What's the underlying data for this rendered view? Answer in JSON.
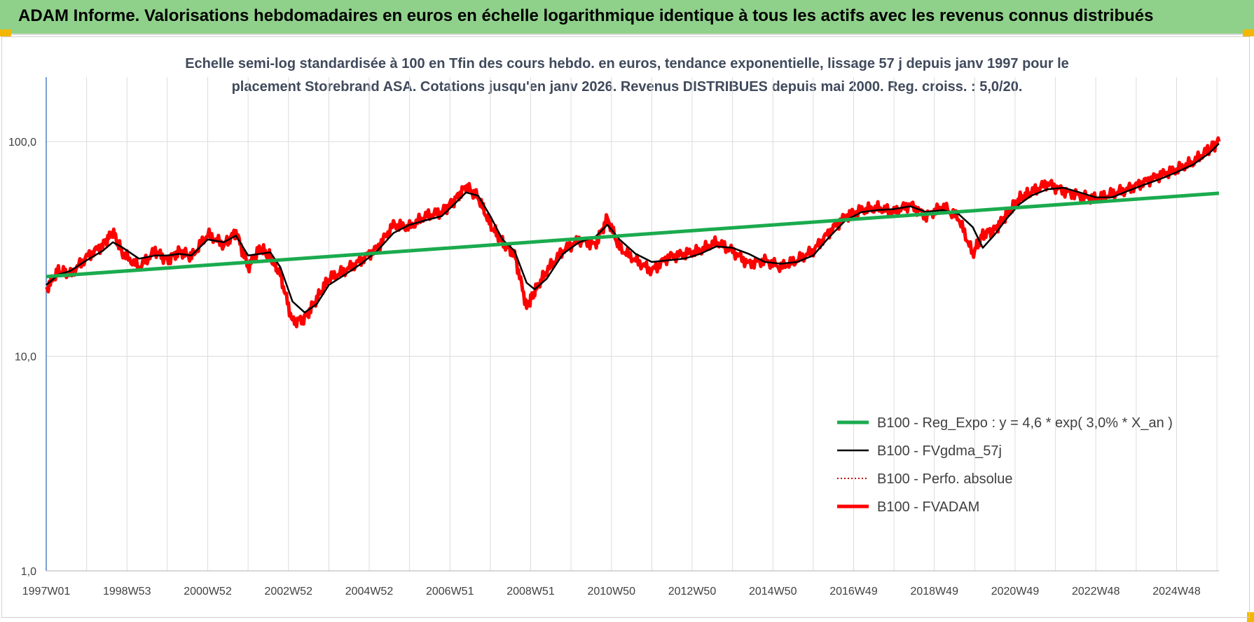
{
  "banner": {
    "title": "ADAM Informe. Valorisations hebdomadaires en euros en échelle logarithmique identique à tous les actifs avec les revenus connus distribués"
  },
  "colors": {
    "banner_bg": "#8fd18a",
    "reg_expo": "#1aab4e",
    "fvgdma": "#000000",
    "perfo": "#c00000",
    "fvadam": "#ff0000",
    "grid": "#dcdcdc",
    "axis": "#4f81bd"
  },
  "chart_data": {
    "type": "line",
    "title_lines": [
      "Echelle semi-log standardisée à 100 en Tfin des cours hebdo. en euros, tendance exponentielle, lissage 57 j depuis janv 1997 pour le",
      "placement Storebrand ASA. Cotations jusqu'en janv 2026. Revenus DISTRIBUES depuis mai 2000. Reg. croiss. : 5,0/20."
    ],
    "y_scale": "log",
    "ylim": [
      1,
      200
    ],
    "y_ticks": [
      {
        "value": 1,
        "label": "1,0"
      },
      {
        "value": 10,
        "label": "10,0"
      },
      {
        "value": 100,
        "label": "100,0"
      }
    ],
    "xlim": [
      1997.0,
      2026.05
    ],
    "x_ticks": [
      {
        "value": 1997.0,
        "label": "1997W01"
      },
      {
        "value": 1999.0,
        "label": "1998W53"
      },
      {
        "value": 2001.0,
        "label": "2000W52"
      },
      {
        "value": 2003.0,
        "label": "2002W52"
      },
      {
        "value": 2005.0,
        "label": "2004W52"
      },
      {
        "value": 2007.0,
        "label": "2006W51"
      },
      {
        "value": 2009.0,
        "label": "2008W51"
      },
      {
        "value": 2011.0,
        "label": "2010W50"
      },
      {
        "value": 2013.0,
        "label": "2012W50"
      },
      {
        "value": 2015.0,
        "label": "2014W50"
      },
      {
        "value": 2017.0,
        "label": "2016W49"
      },
      {
        "value": 2019.0,
        "label": "2018W49"
      },
      {
        "value": 2021.0,
        "label": "2020W49"
      },
      {
        "value": 2023.0,
        "label": "2022W48"
      },
      {
        "value": 2025.0,
        "label": "2024W48"
      }
    ],
    "grid": true,
    "legend_position": "right",
    "series": [
      {
        "name": "B100 - Reg_Expo : y = 4,6 * exp( 3,0% *  X_an )",
        "color": "#1aab4e",
        "style": "solid-thick",
        "x": [
          1997.0,
          2026.05
        ],
        "y": [
          23.5,
          57.5
        ]
      },
      {
        "name": "B100 - FVgdma_57j",
        "color": "#000000",
        "style": "solid-thin",
        "x": [
          1997.0,
          1997.3,
          1997.6,
          1998.0,
          1998.4,
          1998.65,
          1998.9,
          1999.3,
          1999.7,
          2000.0,
          2000.3,
          2000.6,
          2001.0,
          2001.4,
          2001.7,
          2002.0,
          2002.3,
          2002.55,
          2002.8,
          2003.1,
          2003.4,
          2003.7,
          2004.0,
          2004.4,
          2004.8,
          2005.2,
          2005.6,
          2006.0,
          2006.4,
          2006.8,
          2007.1,
          2007.4,
          2007.7,
          2008.0,
          2008.3,
          2008.6,
          2008.9,
          2009.1,
          2009.4,
          2009.8,
          2010.2,
          2010.6,
          2010.9,
          2011.2,
          2011.6,
          2012.0,
          2012.4,
          2012.8,
          2013.2,
          2013.6,
          2014.0,
          2014.4,
          2014.8,
          2015.2,
          2015.6,
          2016.0,
          2016.4,
          2016.8,
          2017.2,
          2017.6,
          2018.0,
          2018.4,
          2018.8,
          2019.2,
          2019.6,
          2019.95,
          2020.2,
          2020.5,
          2020.8,
          2021.1,
          2021.4,
          2021.8,
          2022.2,
          2022.6,
          2023.0,
          2023.4,
          2023.8,
          2024.2,
          2024.6,
          2025.0,
          2025.4,
          2025.8,
          2026.05
        ],
        "y": [
          21.5,
          24.0,
          25.0,
          28.0,
          31.0,
          34.0,
          32.0,
          28.5,
          29.5,
          29.5,
          30.0,
          29.5,
          35.0,
          34.0,
          36.5,
          29.5,
          30.0,
          30.5,
          26.0,
          18.0,
          16.0,
          17.5,
          21.5,
          24.0,
          27.0,
          31.0,
          37.5,
          41.0,
          43.0,
          45.0,
          51.0,
          58.0,
          56.0,
          45.0,
          35.0,
          31.0,
          22.0,
          20.5,
          23.0,
          30.0,
          34.0,
          36.0,
          41.0,
          35.0,
          30.0,
          27.5,
          28.0,
          28.5,
          30.0,
          32.5,
          32.0,
          30.0,
          27.5,
          27.0,
          27.5,
          29.5,
          36.0,
          43.0,
          47.0,
          48.0,
          48.5,
          50.0,
          47.0,
          48.0,
          46.0,
          40.0,
          32.0,
          37.0,
          44.0,
          51.0,
          56.0,
          60.0,
          61.0,
          58.0,
          55.0,
          55.0,
          59.0,
          63.0,
          67.0,
          72.0,
          78.0,
          88.0,
          98.0
        ]
      },
      {
        "name": "B100 - Perfo. absolue",
        "color": "#c00000",
        "style": "dotted"
      },
      {
        "name": "B100 - FVADAM",
        "color": "#ff0000",
        "style": "solid-thick",
        "x": [
          1997.0,
          1997.3,
          1997.6,
          1998.0,
          1998.4,
          1998.65,
          1998.9,
          1999.3,
          1999.7,
          2000.0,
          2000.3,
          2000.6,
          2001.0,
          2001.4,
          2001.7,
          2002.0,
          2002.3,
          2002.55,
          2002.8,
          2003.1,
          2003.4,
          2003.7,
          2004.0,
          2004.4,
          2004.8,
          2005.2,
          2005.6,
          2006.0,
          2006.4,
          2006.8,
          2007.1,
          2007.4,
          2007.7,
          2008.0,
          2008.3,
          2008.6,
          2008.9,
          2009.1,
          2009.4,
          2009.8,
          2010.2,
          2010.6,
          2010.9,
          2011.2,
          2011.6,
          2012.0,
          2012.4,
          2012.8,
          2013.2,
          2013.6,
          2014.0,
          2014.4,
          2014.8,
          2015.2,
          2015.6,
          2016.0,
          2016.4,
          2016.8,
          2017.2,
          2017.6,
          2018.0,
          2018.4,
          2018.8,
          2019.2,
          2019.6,
          2019.95,
          2020.2,
          2020.5,
          2020.8,
          2021.1,
          2021.4,
          2021.8,
          2022.2,
          2022.6,
          2023.0,
          2023.4,
          2023.8,
          2024.2,
          2024.6,
          2025.0,
          2025.4,
          2025.8,
          2026.05
        ],
        "y": [
          20.5,
          25.0,
          24.0,
          29.0,
          33.0,
          38.0,
          30.0,
          26.0,
          31.0,
          28.0,
          31.0,
          29.0,
          37.0,
          33.0,
          38.0,
          26.0,
          32.0,
          29.0,
          24.0,
          14.5,
          15.0,
          18.5,
          23.0,
          25.0,
          28.0,
          32.0,
          41.0,
          40.0,
          45.0,
          47.0,
          53.0,
          62.0,
          55.0,
          41.0,
          34.0,
          30.0,
          17.0,
          20.0,
          25.0,
          31.0,
          35.0,
          33.0,
          44.0,
          32.0,
          28.0,
          25.0,
          29.0,
          30.0,
          31.0,
          34.0,
          31.0,
          27.0,
          28.0,
          26.0,
          28.0,
          31.0,
          38.0,
          45.0,
          48.0,
          49.0,
          47.0,
          51.0,
          45.0,
          50.0,
          44.0,
          30.0,
          37.0,
          39.0,
          46.0,
          54.0,
          58.0,
          64.0,
          59.0,
          56.0,
          54.0,
          57.0,
          60.0,
          65.0,
          70.0,
          74.0,
          80.0,
          92.0,
          100.0
        ]
      }
    ]
  }
}
